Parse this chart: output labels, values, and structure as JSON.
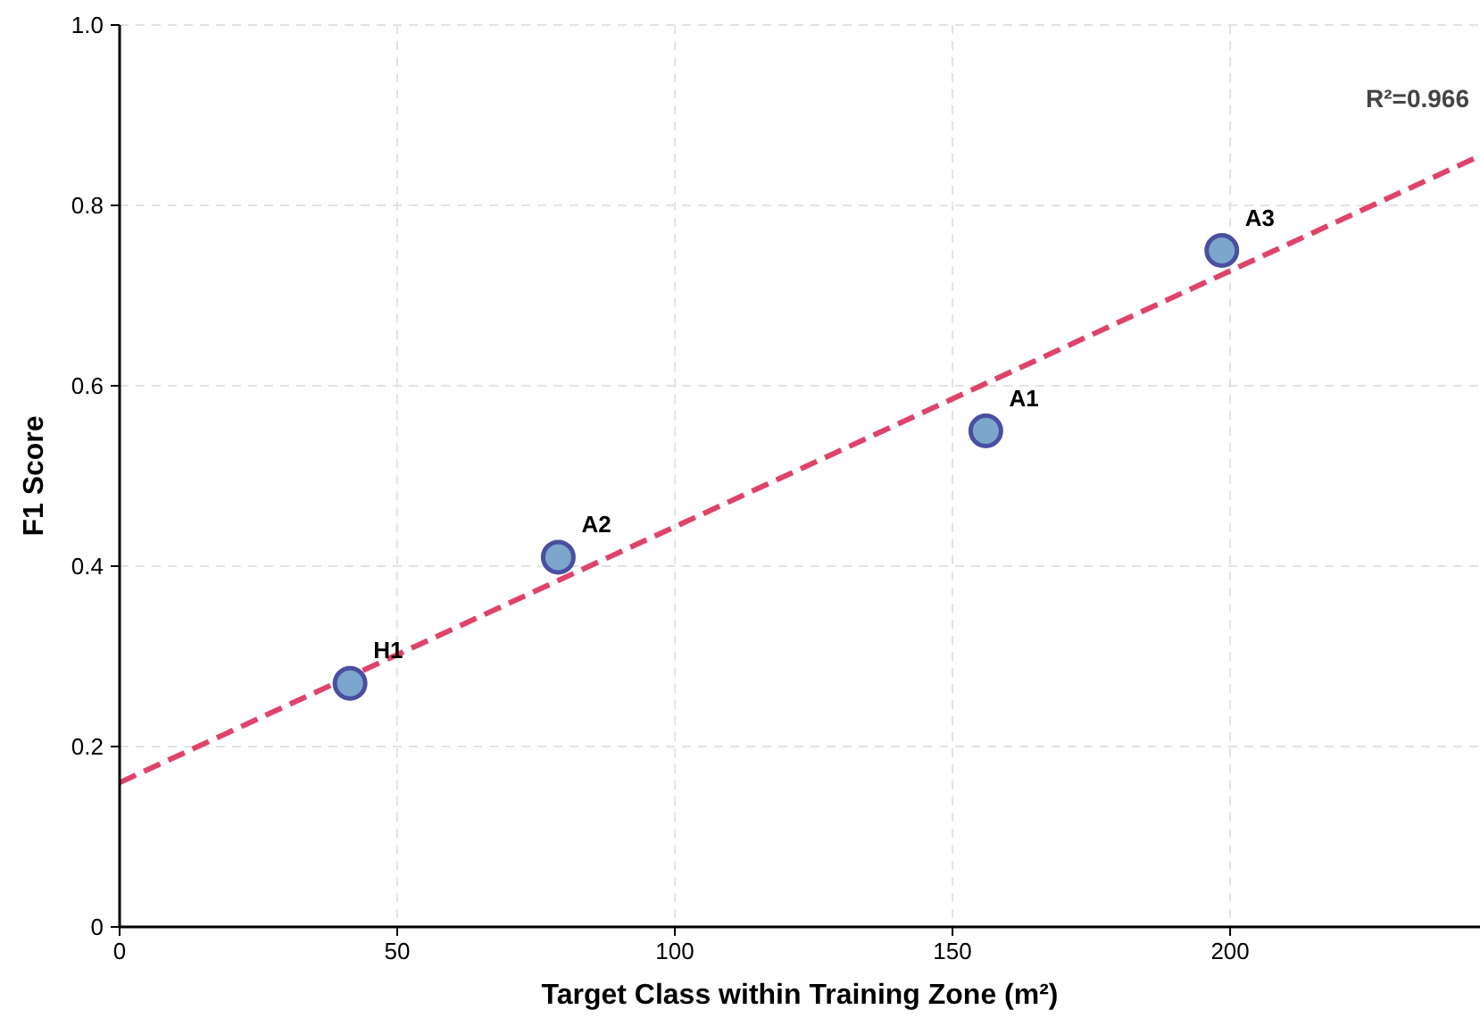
{
  "chart_data": {
    "type": "scatter",
    "xlabel": "Target Class within Training Zone (m²)",
    "ylabel": "F1 Score",
    "xlim": [
      0,
      245
    ],
    "xticks": [
      0,
      50,
      100,
      150,
      200
    ],
    "ylim": [
      0,
      1
    ],
    "yticks": [
      0,
      {
        "value": 0.2,
        "label": "0.2"
      },
      {
        "value": 0.4,
        "label": "0.4"
      },
      {
        "value": 0.6,
        "label": "0.6"
      },
      {
        "value": 0.8,
        "label": "0.8"
      },
      {
        "value": 1,
        "label": "1.0"
      }
    ],
    "grid": true,
    "series": [
      {
        "type": "scatter",
        "color": "#7ba7cc",
        "marker": "circle",
        "x": [
          41.5,
          79,
          156,
          198.5
        ],
        "values": [
          0.27,
          0.41,
          0.55,
          0.75
        ]
      },
      {
        "type": "line",
        "color": "#e0436a",
        "line_style": "dashed",
        "x": [
          0,
          245
        ],
        "values": [
          0.16,
          0.855
        ]
      }
    ],
    "annotations": [
      {
        "text": "H1",
        "x": 41.5,
        "y": 0.27
      },
      {
        "text": "A2",
        "x": 79,
        "y": 0.41
      },
      {
        "text": "A1",
        "x": 156,
        "y": 0.55
      },
      {
        "text": "A3",
        "x": 198.5,
        "y": 0.75
      },
      "R²=0.966"
    ]
  }
}
